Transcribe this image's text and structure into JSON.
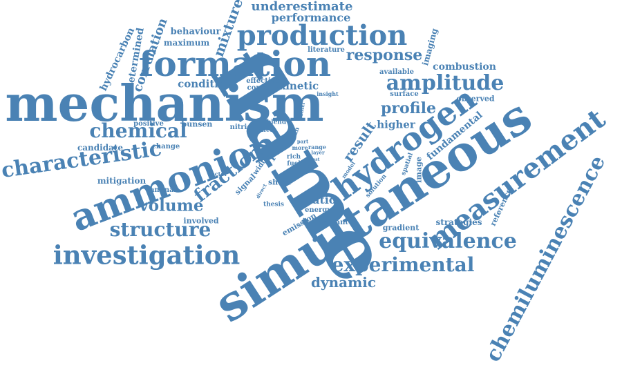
{
  "cloud": {
    "color": "#4a82b4",
    "words": [
      "flame",
      "simultaneous",
      "mechanism",
      "formation",
      "production",
      "ammonion",
      "hydrogen",
      "measurement",
      "chemiluminescence",
      "investigation",
      "characteristic",
      "equivalence",
      "structure",
      "experimental",
      "amplitude",
      "chemical",
      "fraction",
      "volume",
      "response",
      "profile",
      "result",
      "underestimate",
      "performance",
      "mixture",
      "correlation",
      "behaviour",
      "maximum",
      "hydrocarbon",
      "determined",
      "literature",
      "imaging",
      "combustion",
      "available",
      "surface",
      "observed",
      "condition",
      "effective",
      "concern",
      "kinetic",
      "insight",
      "outer",
      "higher",
      "fundamental",
      "positive",
      "bunsen",
      "nitric",
      "blend",
      "effect",
      "candidate",
      "change",
      "mitigation",
      "sector",
      "laminar",
      "width",
      "rich",
      "fuel",
      "plif",
      "part",
      "more",
      "lean",
      "range",
      "layer",
      "test",
      "model",
      "spatial",
      "image",
      "solution",
      "value",
      "signal",
      "shear",
      "direct",
      "ratio",
      "thesis",
      "energy",
      "emission",
      "warrant",
      "gradient",
      "reference",
      "strategies",
      "involved",
      "dynamic"
    ]
  }
}
